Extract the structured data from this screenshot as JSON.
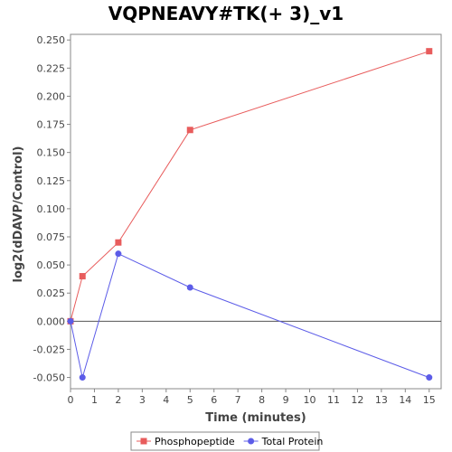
{
  "chart_data": {
    "type": "line",
    "title": "VQPNEAVY#TK(+ 3)_v1",
    "xlabel": "Time (minutes)",
    "ylabel": "log2(dDAVP/Control)",
    "xlim": [
      0,
      15.5
    ],
    "ylim": [
      -0.06,
      0.255
    ],
    "x_ticks": [
      0,
      1,
      2,
      3,
      4,
      5,
      6,
      7,
      8,
      9,
      10,
      11,
      12,
      13,
      14,
      15
    ],
    "y_ticks": [
      -0.05,
      -0.025,
      0.0,
      0.025,
      0.05,
      0.075,
      0.1,
      0.125,
      0.15,
      0.175,
      0.2,
      0.225,
      0.25
    ],
    "y_tick_labels": [
      "-0.050",
      "-0.025",
      "0.000",
      "0.025",
      "0.050",
      "0.075",
      "0.100",
      "0.125",
      "0.150",
      "0.175",
      "0.200",
      "0.225",
      "0.250"
    ],
    "grid": false,
    "zero_line": true,
    "legend_position": "bottom",
    "series": [
      {
        "name": "Phosphopeptide",
        "color": "#e85c5c",
        "marker": "square",
        "x": [
          0,
          0.5,
          2,
          5,
          15
        ],
        "y": [
          0.0,
          0.04,
          0.07,
          0.17,
          0.24
        ]
      },
      {
        "name": "Total Protein",
        "color": "#5c5ce8",
        "marker": "circle",
        "x": [
          0,
          0.5,
          2,
          5,
          15
        ],
        "y": [
          0.0,
          -0.05,
          0.06,
          0.03,
          -0.05
        ]
      }
    ]
  }
}
